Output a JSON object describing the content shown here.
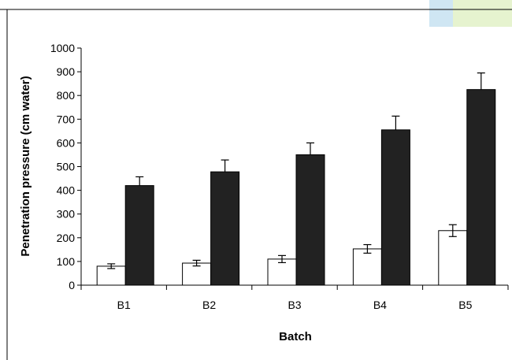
{
  "chart_data": {
    "type": "bar",
    "title": "",
    "xlabel": "Batch",
    "ylabel": "Penetration pressure (cm water)",
    "categories": [
      "B1",
      "B2",
      "B3",
      "B4",
      "B5"
    ],
    "ylim": [
      0,
      1000
    ],
    "yticks": [
      "0",
      "100",
      "200",
      "300",
      "400",
      "500",
      "600",
      "700",
      "800",
      "900",
      "1000"
    ],
    "grid": false,
    "legend": "none",
    "series": [
      {
        "color": "#ffffff",
        "values": [
          80,
          93,
          110,
          153,
          230
        ],
        "errors": [
          10,
          12,
          15,
          18,
          25
        ]
      },
      {
        "color": "#222222",
        "values": [
          420,
          478,
          550,
          655,
          825
        ],
        "errors": [
          37,
          50,
          50,
          58,
          70
        ]
      }
    ]
  }
}
